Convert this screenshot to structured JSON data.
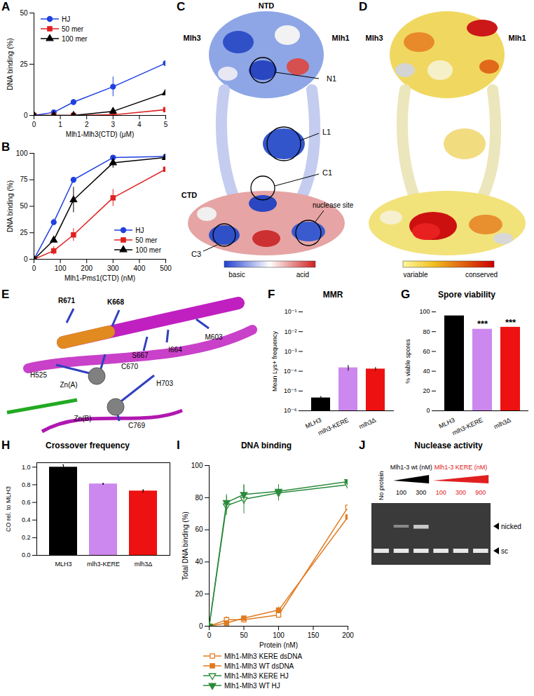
{
  "chart_data": [
    {
      "panel": "A",
      "type": "line",
      "xlabel": "Mlh1-Mlh3(CTD) (μM)",
      "ylabel": "DNA binding (%)",
      "x": [
        0,
        0.75,
        1.5,
        3,
        5
      ],
      "xlim": [
        0,
        5
      ],
      "xticks": [
        0,
        1,
        2,
        3,
        4,
        5
      ],
      "ylim": [
        0,
        50
      ],
      "yticks": [
        0,
        25,
        50
      ],
      "legend": "top-left",
      "series": [
        {
          "name": "HJ",
          "color": "#2040e0",
          "marker": "circle",
          "values": [
            0,
            1.5,
            6.5,
            14,
            25.5
          ],
          "errors": [
            null,
            0.8,
            1.2,
            4.8,
            1.5
          ]
        },
        {
          "name": "50 mer",
          "color": "#e02020",
          "marker": "square",
          "values": [
            0,
            0,
            0,
            0.3,
            2.8
          ]
        },
        {
          "name": "100 mer",
          "color": "#000000",
          "marker": "triangle",
          "values": [
            0,
            0,
            0,
            2,
            11
          ]
        }
      ]
    },
    {
      "panel": "B",
      "type": "line",
      "xlabel": "Mlh1-Pms1(CTD) (nM)",
      "ylabel": "DNA binding (%)",
      "x": [
        0,
        75,
        150,
        300,
        500
      ],
      "xlim": [
        0,
        500
      ],
      "xticks": [
        0,
        100,
        200,
        300,
        400,
        500
      ],
      "ylim": [
        0,
        100
      ],
      "yticks": [
        0,
        25,
        50,
        75,
        100
      ],
      "legend": "bottom-right",
      "series": [
        {
          "name": "HJ",
          "color": "#2040e0",
          "marker": "circle",
          "values": [
            0,
            35,
            75,
            96,
            97
          ],
          "errors": [
            null,
            3,
            2,
            1,
            1
          ]
        },
        {
          "name": "50 mer",
          "color": "#e02020",
          "marker": "square",
          "values": [
            0,
            8,
            23,
            58,
            85
          ],
          "errors": [
            null,
            4,
            6,
            8,
            1
          ]
        },
        {
          "name": "100 mer",
          "color": "#000000",
          "marker": "triangle",
          "values": [
            0,
            18,
            56,
            91,
            96
          ],
          "errors": [
            null,
            null,
            12,
            5,
            2
          ]
        }
      ]
    },
    {
      "panel": "F",
      "type": "bar",
      "title": "MMR",
      "ylabel": "Mean Lys+ frequency",
      "categories": [
        "MLH3",
        "mlh3-KERE",
        "mlh3Δ"
      ],
      "values": [
        4.5e-06,
        0.00015,
        0.00013
      ],
      "errors": [
        7e-07,
        4e-05,
        2e-05
      ],
      "colors": [
        "#000000",
        "#cc88ee",
        "#ee1111"
      ],
      "log": "y",
      "ylim": [
        1e-06,
        0.1
      ],
      "yticks": [
        {
          "value": 1e-06,
          "label": "10⁻⁶"
        },
        {
          "value": 1e-05,
          "label": "10⁻⁵"
        },
        {
          "value": 0.0001,
          "label": "10⁻⁴"
        },
        {
          "value": 0.001,
          "label": "10⁻³"
        },
        {
          "value": 0.01,
          "label": "10⁻²"
        },
        {
          "value": 0.1,
          "label": "10⁻¹"
        }
      ]
    },
    {
      "panel": "G",
      "type": "bar",
      "title": "Spore viability",
      "ylabel": "% viable spores",
      "categories": [
        "MLH3",
        "mlh3-KERE",
        "mlh3Δ"
      ],
      "values": [
        96,
        82.5,
        84.5
      ],
      "colors": [
        "#000000",
        "#cc88ee",
        "#ee1111"
      ],
      "ylim": [
        0,
        100
      ],
      "yticks": [
        0,
        20,
        40,
        60,
        80,
        100
      ],
      "annotations": [
        {
          "category": "mlh3-KERE",
          "text": "***"
        },
        {
          "category": "mlh3Δ",
          "text": "***"
        }
      ]
    },
    {
      "panel": "H",
      "type": "bar",
      "title": "Crossover frequency",
      "ylabel": "CO rel. to MLH3",
      "categories": [
        "MLH3",
        "mlh3-KERE",
        "mlh3Δ"
      ],
      "values": [
        1.0,
        0.81,
        0.73
      ],
      "errors": [
        0.025,
        0.005,
        0.012
      ],
      "colors": [
        "#000000",
        "#cc88ee",
        "#ee1111"
      ],
      "ylim": [
        0,
        1.05
      ],
      "yticks": [
        {
          "value": 0,
          "label": "0.0"
        },
        0.2,
        0.4,
        0.6,
        0.8,
        {
          "value": 1,
          "label": "1.0"
        }
      ]
    },
    {
      "panel": "I",
      "type": "line",
      "title": "DNA binding",
      "xlabel": "Protein (nM)",
      "ylabel": "Total DNA binding (%)",
      "x": [
        0,
        25,
        50,
        100,
        200
      ],
      "xlim": [
        0,
        200
      ],
      "xticks": [
        0,
        50,
        100,
        150,
        200
      ],
      "ylim": [
        0,
        100
      ],
      "yticks": [
        0,
        20,
        40,
        60,
        80,
        100
      ],
      "legend": "bottom",
      "series": [
        {
          "name": "Mlh1-Mlh3 KERE dsDNA",
          "color": "#e07b20",
          "marker": "square-open",
          "values": [
            0,
            4,
            4,
            7,
            74
          ],
          "errors": [
            null,
            2,
            2,
            2,
            7
          ]
        },
        {
          "name": "Mlh1-Mlh3 WT dsDNA",
          "color": "#e07b20",
          "marker": "square",
          "values": [
            0,
            2,
            5,
            10,
            68
          ],
          "errors": [
            null,
            1,
            1,
            2,
            6
          ]
        },
        {
          "name": "Mlh1-Mlh3 KERE HJ",
          "color": "#2a8a3a",
          "marker": "triangle-down-open",
          "values": [
            0,
            75,
            79,
            83,
            88
          ],
          "errors": [
            null,
            6,
            9,
            5,
            3
          ]
        },
        {
          "name": "Mlh1-Mlh3 WT HJ",
          "color": "#2a8a3a",
          "marker": "triangle-down",
          "values": [
            0,
            77,
            82,
            84,
            90
          ],
          "errors": [
            null,
            5,
            6,
            4,
            4
          ]
        }
      ]
    }
  ],
  "images": [
    {
      "panel": "C",
      "labels": [
        "NTD",
        "Mlh3",
        "Mlh1",
        "N1",
        "L1",
        "C1",
        "nuclease site",
        "C3",
        "CTD"
      ],
      "colorbar": [
        "basic",
        "acid"
      ]
    },
    {
      "panel": "D",
      "labels": [
        "Mlh3",
        "Mlh1"
      ],
      "colorbar": [
        "variable",
        "conserved"
      ]
    },
    {
      "panel": "E",
      "labels": [
        "R671",
        "K668",
        "M603",
        "S667",
        "I664",
        "C670",
        "H525",
        "Zn(A)",
        "H703",
        "Zn(B)",
        "C769"
      ]
    },
    {
      "panel": "J",
      "title": "Nuclease activity",
      "lanes": [
        "No protein"
      ],
      "groups": [
        {
          "label": "Mlh1-3 wt (nM)",
          "color": "#000000",
          "lanes": [
            100,
            300
          ]
        },
        {
          "label": "Mlh1-3 KERE (nM)",
          "color": "#e02020",
          "lanes": [
            100,
            300,
            900
          ]
        }
      ],
      "bands": [
        "nicked",
        "sc"
      ]
    }
  ]
}
